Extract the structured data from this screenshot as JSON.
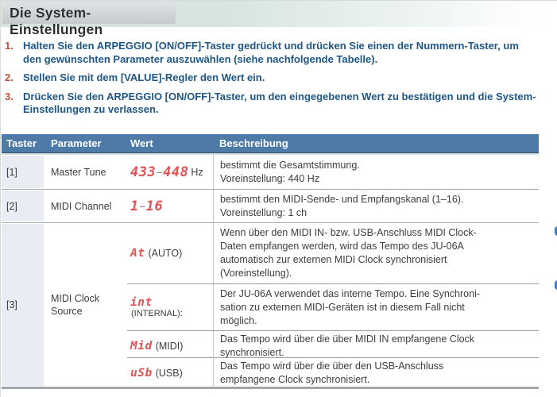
{
  "page": {
    "title": "Die System-Einstellungen"
  },
  "steps": [
    {
      "num": "1.",
      "text": "Halten Sie den ARPEGGIO [ON/OFF]-Taster gedrückt und drücken Sie einen der Nummern-Taster, um den gewünschten Parameter auszuwählen (siehe nachfolgende Tabelle)."
    },
    {
      "num": "2.",
      "text": "Stellen Sie mit dem [VALUE]-Regler den Wert ein."
    },
    {
      "num": "3.",
      "text": "Drücken Sie den ARPEGGIO [ON/OFF]-Taster, um den eingegebenen Wert zu bestätigen und die System-Einstellungen zu verlassen."
    }
  ],
  "table": {
    "headers": [
      "Taster",
      "Parameter",
      "Wert",
      "Beschreibung"
    ],
    "rows": [
      {
        "taster": "[1]",
        "parameter": "Master Tune",
        "wert": {
          "led1": "433",
          "dash": "–",
          "led2": "448",
          "suffix": "Hz"
        },
        "beschreibung": "bestimmt die Gesamtstimmung.\nVoreinstellung: 440 Hz"
      },
      {
        "taster": "[2]",
        "parameter": "MIDI Channel",
        "wert": {
          "led1": "1",
          "dash": "–",
          "led2": "16",
          "suffix": ""
        },
        "beschreibung": "bestimmt den MIDI-Sende- und Empfangskanal (1–16).\nVoreinstellung: 1 ch"
      },
      {
        "taster": "[3]",
        "parameter": "MIDI Clock Source",
        "options": [
          {
            "led": "At",
            "label": "(AUTO)",
            "beschreibung": "Wenn über den MIDI IN- bzw. USB-Anschluss MIDI Clock-\nDaten empfangen werden, wird das Tempo des JU-06A\nautomatisch zur externen MIDI Clock synchronisiert\n(Voreinstellung)."
          },
          {
            "led": "int",
            "label": "(INTERNAL):",
            "beschreibung": "Der JU-06A verwendet das interne Tempo. Eine Synchroni-\nsation zu externen MIDI-Geräten ist in diesem Fall nicht\nmöglich."
          },
          {
            "led": "Mid",
            "label": "(MIDI)",
            "beschreibung": "Das Tempo wird über die über MIDI IN empfangene Clock\nsynchronisiert."
          },
          {
            "led": "uSb",
            "label": "(USB)",
            "beschreibung": "Das Tempo wird über die über den USB-Anschluss\nempfangene Clock synchronisiert."
          }
        ]
      }
    ]
  },
  "colors": {
    "header_bg": "#4d7aa6",
    "led_red": "#e05352",
    "step_text_blue": "#1e5787",
    "step_number_red": "#c0503c",
    "edge_accent_blue": "#3d7ec0"
  }
}
